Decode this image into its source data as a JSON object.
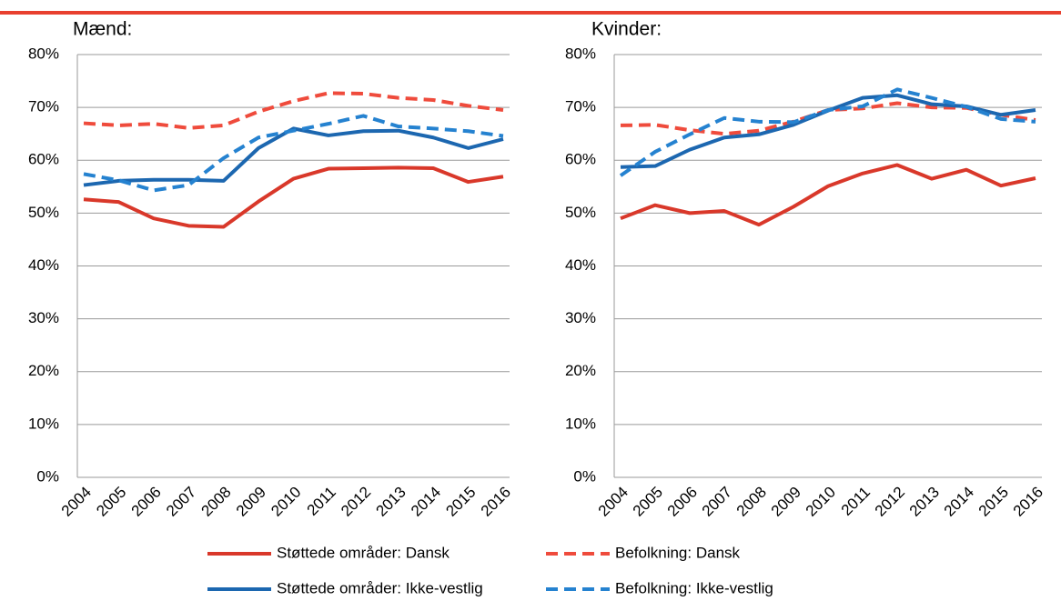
{
  "chart_data": [
    {
      "type": "line",
      "title": "Mænd:",
      "categories": [
        "2004",
        "2005",
        "2006",
        "2007",
        "2008",
        "2009",
        "2010",
        "2011",
        "2012",
        "2013",
        "2014",
        "2015",
        "2016"
      ],
      "ylim": [
        0,
        80
      ],
      "yticks": [
        {
          "value": 0,
          "label": "0%"
        },
        {
          "value": 10,
          "label": "10%"
        },
        {
          "value": 20,
          "label": "20%"
        },
        {
          "value": 30,
          "label": "30%"
        },
        {
          "value": 40,
          "label": "40%"
        },
        {
          "value": 50,
          "label": "50%"
        },
        {
          "value": 60,
          "label": "60%"
        },
        {
          "value": 70,
          "label": "70%"
        },
        {
          "value": 80,
          "label": "80%"
        }
      ],
      "grid": true,
      "series": [
        {
          "name": "Støttede områder: Dansk",
          "color": "#d9382a",
          "style": "solid",
          "values": [
            52.6,
            52.1,
            49.0,
            47.6,
            47.4,
            52.2,
            56.5,
            58.4,
            58.5,
            58.6,
            58.5,
            55.9,
            56.9
          ]
        },
        {
          "name": "Befolkning: Dansk",
          "color": "#ef4b3c",
          "style": "dashed",
          "values": [
            67.0,
            66.6,
            66.9,
            66.1,
            66.6,
            69.2,
            71.2,
            72.7,
            72.6,
            71.8,
            71.4,
            70.3,
            69.5
          ]
        },
        {
          "name": "Støttede områder: Ikke-vestlig",
          "color": "#1c67b0",
          "style": "solid",
          "values": [
            55.3,
            56.1,
            56.3,
            56.3,
            56.1,
            62.3,
            66.0,
            64.7,
            65.5,
            65.6,
            64.3,
            62.3,
            64.0
          ]
        },
        {
          "name": "Befolkning: Ikke-vestlig",
          "color": "#2582d0",
          "style": "dashed",
          "values": [
            57.4,
            56.2,
            54.3,
            55.3,
            60.4,
            64.3,
            65.6,
            66.9,
            68.4,
            66.4,
            66.0,
            65.5,
            64.6
          ]
        }
      ]
    },
    {
      "type": "line",
      "title": "Kvinder:",
      "categories": [
        "2004",
        "2005",
        "2006",
        "2007",
        "2008",
        "2009",
        "2010",
        "2011",
        "2012",
        "2013",
        "2014",
        "2015",
        "2016"
      ],
      "ylim": [
        0,
        80
      ],
      "yticks": [
        {
          "value": 0,
          "label": "0%"
        },
        {
          "value": 10,
          "label": "10%"
        },
        {
          "value": 20,
          "label": "20%"
        },
        {
          "value": 30,
          "label": "30%"
        },
        {
          "value": 40,
          "label": "40%"
        },
        {
          "value": 50,
          "label": "50%"
        },
        {
          "value": 60,
          "label": "60%"
        },
        {
          "value": 70,
          "label": "70%"
        },
        {
          "value": 80,
          "label": "80%"
        }
      ],
      "grid": true,
      "series": [
        {
          "name": "Støttede områder: Dansk",
          "color": "#d9382a",
          "style": "solid",
          "values": [
            49.0,
            51.5,
            50.0,
            50.4,
            47.8,
            51.2,
            55.1,
            57.5,
            59.1,
            56.5,
            58.2,
            55.2,
            56.6
          ]
        },
        {
          "name": "Befolkning: Dansk",
          "color": "#ef4b3c",
          "style": "dashed",
          "values": [
            66.6,
            66.7,
            65.7,
            65.0,
            65.6,
            67.3,
            69.5,
            69.8,
            70.8,
            70.0,
            69.9,
            68.6,
            67.6
          ]
        },
        {
          "name": "Støttede områder: Ikke-vestlig",
          "color": "#1c67b0",
          "style": "solid",
          "values": [
            58.7,
            58.9,
            62.0,
            64.3,
            64.9,
            66.7,
            69.4,
            71.8,
            72.3,
            70.6,
            70.2,
            68.6,
            69.5
          ]
        },
        {
          "name": "Befolkning: Ikke-vestlig",
          "color": "#2582d0",
          "style": "dashed",
          "values": [
            57.1,
            61.6,
            64.9,
            68.0,
            67.3,
            67.2,
            69.5,
            70.2,
            73.4,
            71.8,
            70.1,
            67.8,
            67.3
          ]
        }
      ]
    }
  ]
}
